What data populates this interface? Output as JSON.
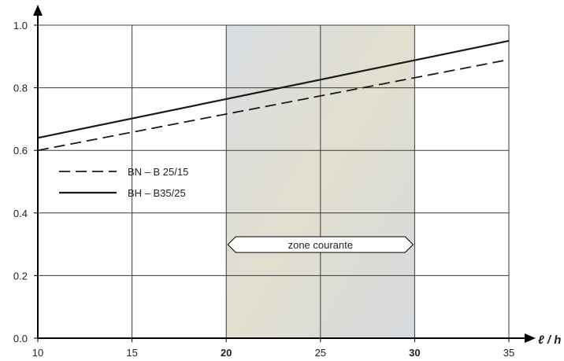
{
  "chart_data": {
    "type": "line",
    "title": "",
    "xlabel": "ℓ / h",
    "ylabel": "",
    "xlim": [
      10,
      35
    ],
    "ylim": [
      0.0,
      1.0
    ],
    "x_ticks": [
      {
        "value": 10,
        "label": "10",
        "bold": false
      },
      {
        "value": 15,
        "label": "15",
        "bold": false
      },
      {
        "value": 20,
        "label": "20",
        "bold": true
      },
      {
        "value": 25,
        "label": "25",
        "bold": false
      },
      {
        "value": 30,
        "label": "30",
        "bold": true
      },
      {
        "value": 35,
        "label": "35",
        "bold": false
      }
    ],
    "y_ticks": [
      {
        "value": 0.0,
        "label": "0.0"
      },
      {
        "value": 0.2,
        "label": "0.2"
      },
      {
        "value": 0.4,
        "label": "0.4"
      },
      {
        "value": 0.6,
        "label": "0.6"
      },
      {
        "value": 0.8,
        "label": "0.8"
      },
      {
        "value": 1.0,
        "label": "1.0"
      }
    ],
    "grid": true,
    "legend_position": "left-middle",
    "series": [
      {
        "name": "BN – B 25/15",
        "style": "dashed",
        "color": "#1a1a1a",
        "x": [
          10,
          35
        ],
        "y": [
          0.6,
          0.89
        ]
      },
      {
        "name": "BH – B35/25",
        "style": "solid",
        "color": "#1a1a1a",
        "x": [
          10,
          35
        ],
        "y": [
          0.64,
          0.95
        ]
      }
    ],
    "shaded_region": {
      "x_start": 20,
      "x_end": 30,
      "label": "zone courante",
      "color": "#dcdcd4"
    }
  }
}
